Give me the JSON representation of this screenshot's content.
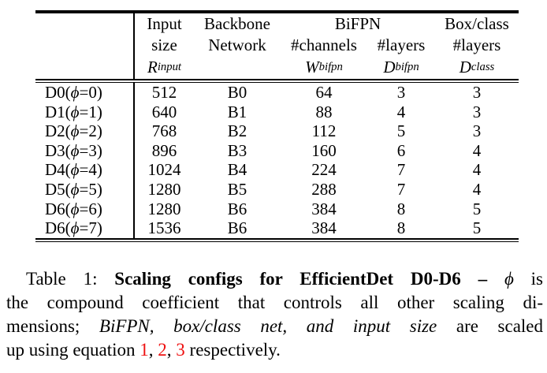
{
  "phi_symbol": "ϕ",
  "colors": {
    "equation_ref": "#ee1111",
    "text": "#000000"
  },
  "table": {
    "label_punct": {
      "open": " (",
      "eq": " = ",
      "close": ")"
    },
    "header": {
      "input": {
        "line1": "Input",
        "line2": "size",
        "math_base": "R",
        "math_sub": "input"
      },
      "backbone": {
        "line1": "Backbone",
        "line2": "Network"
      },
      "bifpn_group": "BiFPN",
      "channels": {
        "line2": "#channels",
        "math_base": "W",
        "math_sub": "bifpn"
      },
      "layers": {
        "line2": "#layers",
        "math_base": "D",
        "math_sub": "bifpn"
      },
      "boxclass": {
        "line1": "Box/class",
        "line2": "#layers",
        "math_base": "D",
        "math_sub": "class"
      }
    },
    "rows": [
      {
        "model": "D0",
        "phi": "0",
        "input_size": "512",
        "backbone": "B0",
        "bifpn_channels": "64",
        "bifpn_layers": "3",
        "box_class_layers": "3"
      },
      {
        "model": "D1",
        "phi": "1",
        "input_size": "640",
        "backbone": "B1",
        "bifpn_channels": "88",
        "bifpn_layers": "4",
        "box_class_layers": "3"
      },
      {
        "model": "D2",
        "phi": "2",
        "input_size": "768",
        "backbone": "B2",
        "bifpn_channels": "112",
        "bifpn_layers": "5",
        "box_class_layers": "3"
      },
      {
        "model": "D3",
        "phi": "3",
        "input_size": "896",
        "backbone": "B3",
        "bifpn_channels": "160",
        "bifpn_layers": "6",
        "box_class_layers": "4"
      },
      {
        "model": "D4",
        "phi": "4",
        "input_size": "1024",
        "backbone": "B4",
        "bifpn_channels": "224",
        "bifpn_layers": "7",
        "box_class_layers": "4"
      },
      {
        "model": "D5",
        "phi": "5",
        "input_size": "1280",
        "backbone": "B5",
        "bifpn_channels": "288",
        "bifpn_layers": "7",
        "box_class_layers": "4"
      },
      {
        "model": "D6",
        "phi": "6",
        "input_size": "1280",
        "backbone": "B6",
        "bifpn_channels": "384",
        "bifpn_layers": "8",
        "box_class_layers": "5"
      },
      {
        "model": "D6",
        "phi": "7",
        "input_size": "1536",
        "backbone": "B6",
        "bifpn_channels": "384",
        "bifpn_layers": "8",
        "box_class_layers": "5"
      }
    ]
  },
  "caption": {
    "line1": {
      "prefix": "Table 1: ",
      "bold": "Scaling configs for EfficientDet D0-D6 – ",
      "phi": "ϕ",
      "suffix": " is"
    },
    "line2": "the compound coefficient that controls all other scaling di-",
    "line3": {
      "pre": "mensions; ",
      "italic": "BiFPN, box/class net, and input size",
      "post": " are scaled"
    },
    "line4": {
      "pre": "up using equation ",
      "ref1": "1",
      "sep1": ", ",
      "ref2": "2",
      "sep2": ", ",
      "ref3": "3",
      "post": " respectively."
    }
  }
}
